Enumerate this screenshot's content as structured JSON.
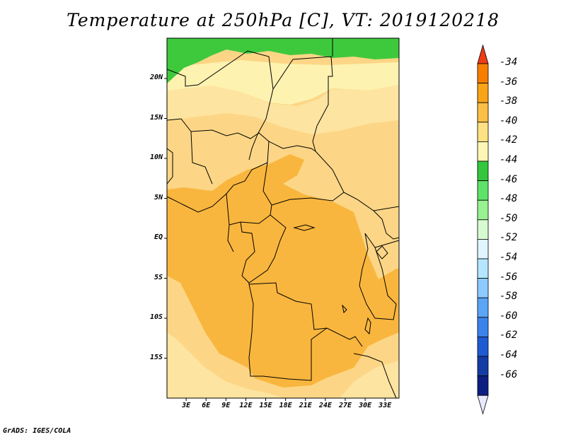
{
  "title": "Temperature at 250hPa [C], VT: 2019120218",
  "credit": "GrADS: IGES/COLA",
  "y_ticks": [
    {
      "label": "20N",
      "lat": 20
    },
    {
      "label": "15N",
      "lat": 15
    },
    {
      "label": "10N",
      "lat": 10
    },
    {
      "label": "5N",
      "lat": 5
    },
    {
      "label": "EQ",
      "lat": 0
    },
    {
      "label": "5S",
      "lat": -5
    },
    {
      "label": "10S",
      "lat": -10
    },
    {
      "label": "15S",
      "lat": -15
    }
  ],
  "x_ticks": [
    {
      "label": "3E",
      "lon": 3
    },
    {
      "label": "6E",
      "lon": 6
    },
    {
      "label": "9E",
      "lon": 9
    },
    {
      "label": "12E",
      "lon": 12
    },
    {
      "label": "15E",
      "lon": 15
    },
    {
      "label": "18E",
      "lon": 18
    },
    {
      "label": "21E",
      "lon": 21
    },
    {
      "label": "24E",
      "lon": 24
    },
    {
      "label": "27E",
      "lon": 27
    },
    {
      "label": "30E",
      "lon": 30
    },
    {
      "label": "33E",
      "lon": 33
    }
  ],
  "colorbar": {
    "labels": [
      "-34",
      "-36",
      "-38",
      "-40",
      "-42",
      "-44",
      "-46",
      "-48",
      "-50",
      "-52",
      "-54",
      "-56",
      "-58",
      "-60",
      "-62",
      "-64",
      "-66"
    ],
    "colors": [
      "#f03c14",
      "#f77e00",
      "#f9a418",
      "#fbbf45",
      "#fde183",
      "#fff5b4",
      "#34c63c",
      "#5ee268",
      "#98f290",
      "#d6fbd0",
      "#e0f5ff",
      "#b4e6ff",
      "#8ccaff",
      "#5aa5f5",
      "#3c82eb",
      "#1e5ad2",
      "#143ca5",
      "#0c1e82",
      "#e8e8ff"
    ]
  },
  "colors": {
    "band_green": "#3ec93d",
    "band_pale": "#fef2b0",
    "band_light": "#fde4a0",
    "band_mid": "#fcd686",
    "band_warm": "#f9b63e",
    "border": "#000000"
  }
}
